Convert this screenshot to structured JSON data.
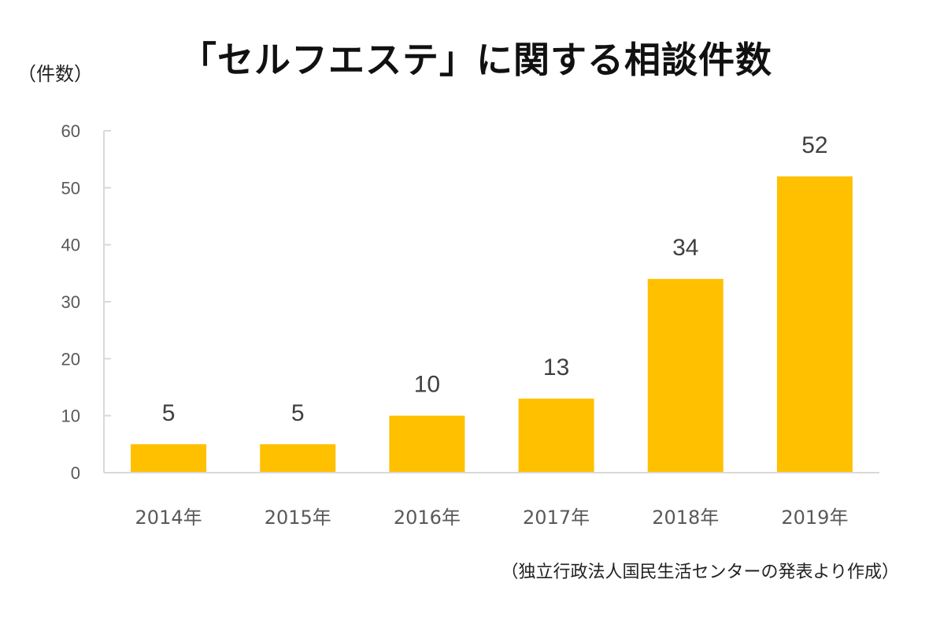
{
  "chart_data": {
    "type": "bar",
    "title": "「セルフエステ」に関する相談件数",
    "ylabel": "（件数）",
    "xlabel": "",
    "categories": [
      "2014年",
      "2015年",
      "2016年",
      "2017年",
      "2018年",
      "2019年"
    ],
    "values": [
      5,
      5,
      10,
      13,
      34,
      52
    ],
    "data_labels": [
      "5",
      "5",
      "10",
      "13",
      "34",
      "52"
    ],
    "ylim": [
      0,
      60
    ],
    "yticks": [
      0,
      10,
      20,
      30,
      40,
      50,
      60
    ],
    "ytick_labels": [
      "0",
      "10",
      "20",
      "30",
      "40",
      "50",
      "60"
    ],
    "grid": false,
    "legend": "none",
    "bar_color": "#FFC000",
    "axis_color": "#D9D9D9",
    "source_note": "（独立行政法人国民生活センターの発表より作成）"
  }
}
